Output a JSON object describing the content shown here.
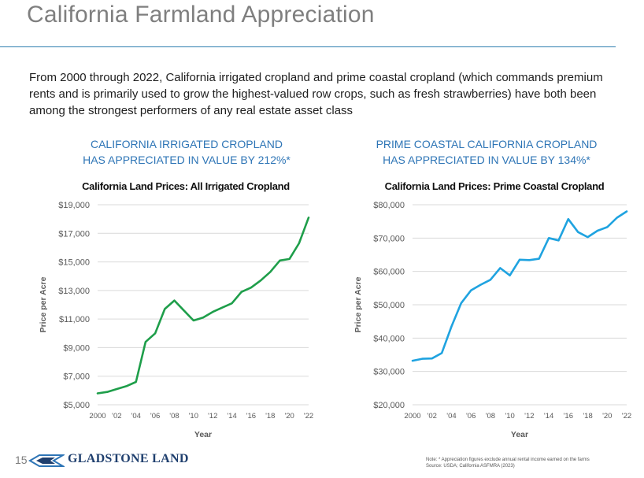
{
  "page": {
    "title": "California Farmland Appreciation",
    "intro": "From 2000 through 2022, California irrigated cropland and prime coastal cropland (which commands premium rents and is primarily used to grow the highest-valued row crops, such as fresh strawberries) have both been among the strongest performers of any real estate asset class",
    "left_headline": [
      "CALIFORNIA IRRIGATED CROPLAND",
      "HAS APPRECIATED IN VALUE BY 212%*"
    ],
    "right_headline": [
      "PRIME COASTAL CALIFORNIA CROPLAND",
      "HAS APPRECIATED IN VALUE BY 134%*"
    ],
    "footer": {
      "page_number": "15",
      "brand": "GLADSTONE LAND",
      "note_line1": "Note:    * Appreciation figures exclude annual rental income earned on the farms",
      "note_line2": "Source: USDA; California ASFMRA (2023)"
    }
  },
  "colors": {
    "title": "#7f7f7f",
    "accent_blue": "#2e75b6",
    "green_line": "#1e9e4a",
    "cyan_line": "#1fa3e0",
    "brand": "#1f3f6e"
  },
  "chart_data": [
    {
      "type": "line",
      "title": "California Land Prices:  All Irrigated Cropland",
      "xlabel": "Year",
      "ylabel": "Price per Acre",
      "x": [
        2000,
        2001,
        2002,
        2003,
        2004,
        2005,
        2006,
        2007,
        2008,
        2009,
        2010,
        2011,
        2012,
        2013,
        2014,
        2015,
        2016,
        2017,
        2018,
        2019,
        2020,
        2021,
        2022
      ],
      "x_tick_values": [
        2000,
        2002,
        2004,
        2006,
        2008,
        2010,
        2012,
        2014,
        2016,
        2018,
        2020,
        2022
      ],
      "x_tick_labels": [
        "2000",
        "'02",
        "'04",
        "'06",
        "'08",
        "'10",
        "'12",
        "'14",
        "'16",
        "'18",
        "'20",
        "'22"
      ],
      "y_ticks": [
        5000,
        7000,
        9000,
        11000,
        13000,
        15000,
        17000,
        19000
      ],
      "y_tick_labels": [
        "$5,000",
        "$7,000",
        "$9,000",
        "$11,000",
        "$13,000",
        "$15,000",
        "$17,000",
        "$19,000"
      ],
      "ylim": [
        5000,
        19000
      ],
      "grid": true,
      "series": [
        {
          "color": "#1e9e4a",
          "values": [
            5800,
            5900,
            6100,
            6300,
            6600,
            9400,
            10000,
            11700,
            12300,
            11600,
            10900,
            11100,
            11500,
            11800,
            12100,
            12900,
            13200,
            13700,
            14300,
            15100,
            15200,
            16300,
            18100
          ]
        }
      ]
    },
    {
      "type": "line",
      "title": "California Land Prices:  Prime Coastal Cropland",
      "xlabel": "Year",
      "ylabel": "Price per Acre",
      "x": [
        2000,
        2001,
        2002,
        2003,
        2004,
        2005,
        2006,
        2007,
        2008,
        2009,
        2010,
        2011,
        2012,
        2013,
        2014,
        2015,
        2016,
        2017,
        2018,
        2019,
        2020,
        2021,
        2022
      ],
      "x_tick_values": [
        2000,
        2002,
        2004,
        2006,
        2008,
        2010,
        2012,
        2014,
        2016,
        2018,
        2020,
        2022
      ],
      "x_tick_labels": [
        "2000",
        "'02",
        "'04",
        "'06",
        "'08",
        "'10",
        "'12",
        "'14",
        "'16",
        "'18",
        "'20",
        "'22"
      ],
      "y_ticks": [
        20000,
        30000,
        40000,
        50000,
        60000,
        70000,
        80000
      ],
      "y_tick_labels": [
        "$20,000",
        "$30,000",
        "$40,000",
        "$50,000",
        "$60,000",
        "$70,000",
        "$80,000"
      ],
      "ylim": [
        20000,
        80000
      ],
      "grid": true,
      "series": [
        {
          "color": "#1fa3e0",
          "values": [
            33200,
            33800,
            33900,
            35500,
            43500,
            50500,
            54300,
            56000,
            57500,
            61000,
            58800,
            63500,
            63400,
            63800,
            70000,
            69300,
            75700,
            71800,
            70300,
            72200,
            73300,
            76100,
            78000
          ]
        }
      ]
    }
  ]
}
